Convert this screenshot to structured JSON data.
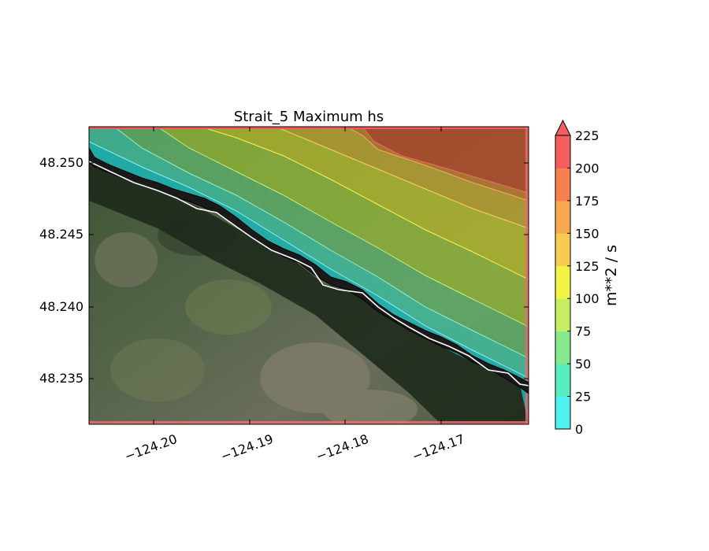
{
  "chart_data": {
    "type": "contour-map",
    "title": "Strait_5 Maximum hs",
    "x_ticks": [
      "−124.20",
      "−124.19",
      "−124.18",
      "−124.17"
    ],
    "y_ticks": [
      "48.250",
      "48.245",
      "48.240",
      "48.235"
    ],
    "colorbar": {
      "label": "m**2 / s",
      "ticks": [
        "0",
        "25",
        "50",
        "75",
        "100",
        "125",
        "150",
        "175",
        "200",
        "225"
      ],
      "levels": [
        0,
        25,
        50,
        75,
        100,
        125,
        150,
        175,
        200,
        225
      ],
      "colors": [
        "#4ff0f0",
        "#58ecbe",
        "#86ea8c",
        "#c6ee64",
        "#f3f346",
        "#f8cc50",
        "#f8a850",
        "#f6804f",
        "#f45f5e"
      ],
      "extend": "max"
    },
    "background": "satellite imagery",
    "coastline_color": "#ffffff"
  }
}
